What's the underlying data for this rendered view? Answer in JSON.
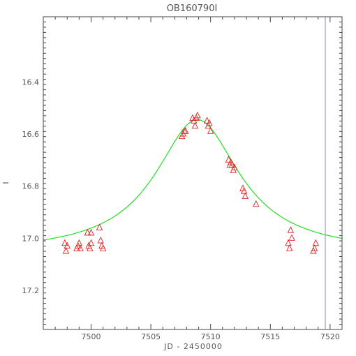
{
  "chart_data": {
    "type": "scatter",
    "title": "OB160790I",
    "xlabel": "JD - 2450000",
    "ylabel": "I",
    "xlim": [
      7496.0,
      7521.0
    ],
    "ylim": [
      17.35,
      16.15
    ],
    "y_inverted": true,
    "grid": false,
    "x_ticks": [
      7500,
      7505,
      7510,
      7515,
      7520
    ],
    "x_tick_labels": [
      "7500",
      "7505",
      "7510",
      "7515",
      "7520"
    ],
    "y_ticks": [
      16.4,
      16.6,
      16.8,
      17.0,
      17.2
    ],
    "y_tick_labels": [
      "16.4",
      "16.6",
      "16.8",
      "17.0",
      "17.2"
    ],
    "vertical_line_x": 7519.6,
    "colors": {
      "points": "#dd2222",
      "model": "#22dd22",
      "vline": "#8888bb",
      "axes": "#444444"
    },
    "model": {
      "baseline": 17.058,
      "peak": 16.545,
      "t0": 7508.9,
      "width": 4.3
    },
    "series": [
      {
        "marker": "triangle",
        "x": [
          7497.8,
          7497.9,
          7498.0,
          7498.8,
          7498.9,
          7499.0,
          7499.1,
          7499.7,
          7499.8,
          7499.9,
          7500.0,
          7500.0,
          7500.7,
          7500.8,
          7500.9,
          7501.0,
          7507.6,
          7507.7,
          7507.8,
          7507.9,
          7508.5,
          7508.6,
          7508.7,
          7508.8,
          7508.9,
          7509.7,
          7509.8,
          7509.9,
          7510.0,
          7511.5,
          7511.6,
          7511.7,
          7511.8,
          7511.9,
          7512.0,
          7512.7,
          7512.8,
          7512.9,
          7513.8,
          7516.5,
          7516.6,
          7516.7,
          7516.8,
          7518.6,
          7518.7,
          7518.8
        ],
        "y": [
          17.02,
          17.05,
          17.03,
          17.04,
          17.03,
          17.02,
          17.04,
          16.98,
          17.03,
          17.04,
          17.02,
          16.98,
          16.96,
          17.01,
          17.03,
          17.04,
          16.61,
          16.6,
          16.59,
          16.59,
          16.54,
          16.55,
          16.57,
          16.54,
          16.53,
          16.55,
          16.57,
          16.56,
          16.59,
          16.7,
          16.72,
          16.71,
          16.72,
          16.74,
          16.73,
          16.81,
          16.82,
          16.84,
          16.87,
          17.02,
          17.04,
          16.97,
          17.0,
          17.05,
          17.04,
          17.02
        ]
      }
    ]
  }
}
